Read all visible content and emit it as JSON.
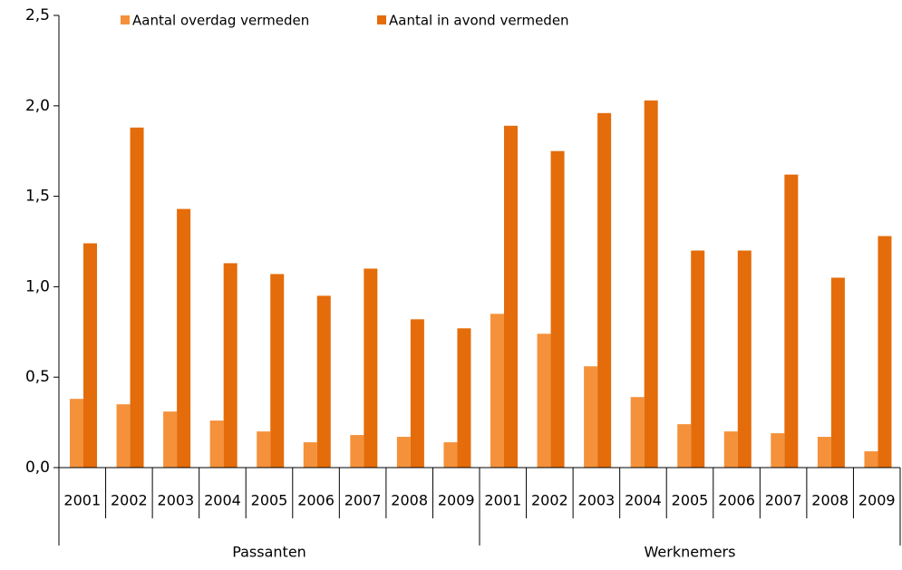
{
  "chart_data": {
    "type": "bar",
    "categories": [
      "2001",
      "2002",
      "2003",
      "2004",
      "2005",
      "2006",
      "2007",
      "2008",
      "2009",
      "2001",
      "2002",
      "2003",
      "2004",
      "2005",
      "2006",
      "2007",
      "2008",
      "2009"
    ],
    "groups": [
      "Passanten",
      "Werknemers"
    ],
    "series": [
      {
        "name": "Aantal overdag vermeden",
        "color": "#f4913a",
        "values": [
          0.38,
          0.35,
          0.31,
          0.26,
          0.2,
          0.14,
          0.18,
          0.17,
          0.14,
          0.85,
          0.74,
          0.56,
          0.39,
          0.24,
          0.2,
          0.19,
          0.17,
          0.09
        ]
      },
      {
        "name": "Aantal in avond vermeden",
        "color": "#e46c0a",
        "values": [
          1.24,
          1.88,
          1.43,
          1.13,
          1.07,
          0.95,
          1.1,
          0.82,
          0.77,
          1.89,
          1.75,
          1.96,
          2.03,
          1.2,
          1.2,
          1.62,
          1.05,
          1.28
        ]
      }
    ],
    "ylim": [
      0,
      2.5
    ],
    "yticks": [
      {
        "value": 0,
        "label": "0,0"
      },
      {
        "value": 0.5,
        "label": "0,5"
      },
      {
        "value": 1,
        "label": "1,0"
      },
      {
        "value": 1.5,
        "label": "1,5"
      },
      {
        "value": 2,
        "label": "2,0"
      },
      {
        "value": 2.5,
        "label": "2,5"
      }
    ]
  }
}
